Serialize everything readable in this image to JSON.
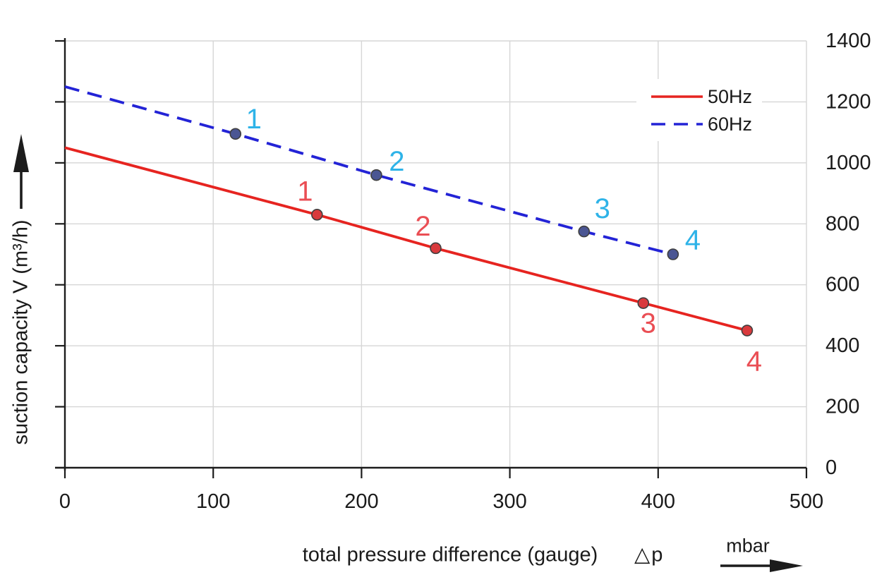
{
  "page": {
    "background": "#ffffff"
  },
  "chart_data": {
    "type": "line",
    "title": "",
    "xlabel": "total pressure difference (gauge)",
    "xlabel_symbol": "△p",
    "x_unit": "mbar",
    "ylabel": "suction capacity V (m³/h)",
    "xlim": [
      0,
      500
    ],
    "ylim": [
      0,
      1400
    ],
    "x_ticks": [
      0,
      100,
      200,
      300,
      400,
      500
    ],
    "y_ticks": [
      0,
      200,
      400,
      600,
      800,
      1000,
      1200,
      1400
    ],
    "grid": true,
    "legend_position": "top-right",
    "series": [
      {
        "name": "50Hz",
        "style": "solid",
        "color": "#e62420",
        "marker_fill": "#d93a3d",
        "marker_edge": "#3f3f3f",
        "label_color": "#ea4e54",
        "points": [
          {
            "x": 0,
            "y": 1050
          },
          {
            "x": 170,
            "y": 830,
            "label": "1",
            "dx": -17,
            "dy": -33
          },
          {
            "x": 250,
            "y": 720,
            "label": "2",
            "dx": -18,
            "dy": -31
          },
          {
            "x": 390,
            "y": 540,
            "label": "3",
            "dx": 7,
            "dy": 29
          },
          {
            "x": 460,
            "y": 450,
            "label": "4",
            "dx": 10,
            "dy": 44
          }
        ]
      },
      {
        "name": "60Hz",
        "style": "dashed",
        "color": "#2323d6",
        "marker_fill": "#4b5693",
        "marker_edge": "#3f3f3f",
        "label_color": "#2eb3e8",
        "points": [
          {
            "x": 0,
            "y": 1250
          },
          {
            "x": 115,
            "y": 1095,
            "label": "1",
            "dx": 26,
            "dy": -21
          },
          {
            "x": 210,
            "y": 960,
            "label": "2",
            "dx": 29,
            "dy": -19
          },
          {
            "x": 350,
            "y": 775,
            "label": "3",
            "dx": 26,
            "dy": -32
          },
          {
            "x": 410,
            "y": 700,
            "label": "4",
            "dx": 28,
            "dy": -20
          }
        ]
      }
    ],
    "legend": [
      {
        "label": "50Hz"
      },
      {
        "label": "60Hz"
      }
    ]
  },
  "colors": {
    "grid": "#d6d6d6",
    "axis": "#1c1c1c",
    "text": "#1a1a1a",
    "legend_background": "#ffffff"
  }
}
